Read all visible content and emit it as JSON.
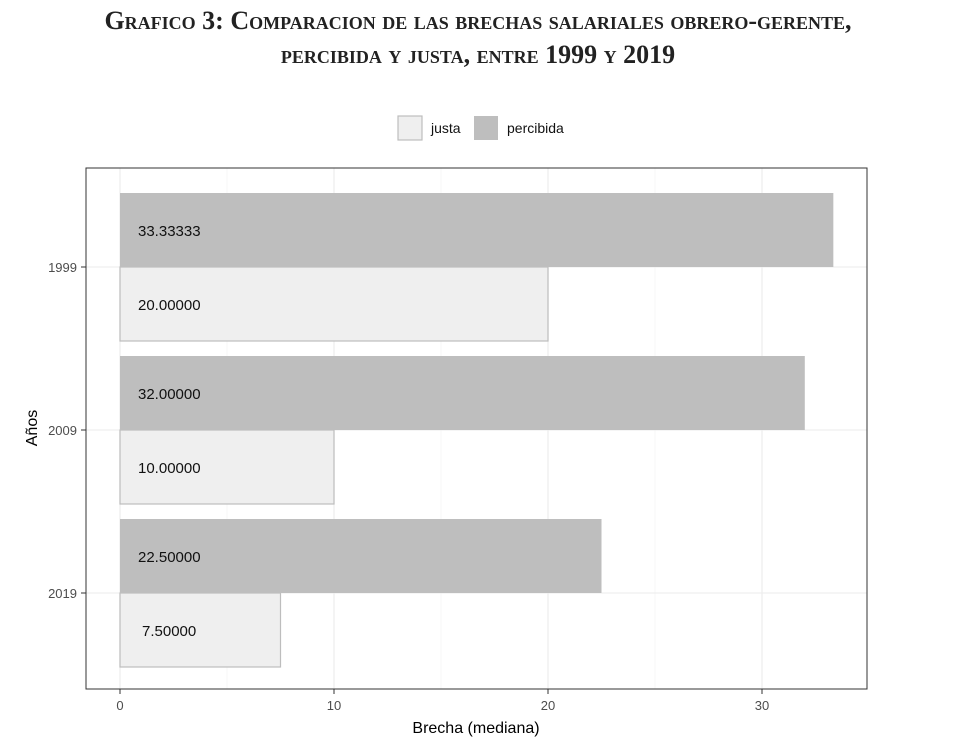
{
  "title_lines": [
    "Grafico 3: Comparacion de las brechas salariales obrero-gerente,",
    "percibida y justa, entre 1999 y 2019"
  ],
  "chart_data": {
    "type": "bar",
    "orientation": "horizontal",
    "categories": [
      "1999",
      "2009",
      "2019"
    ],
    "series": [
      {
        "name": "percibida",
        "values": [
          33.33333,
          32.0,
          22.5
        ],
        "labels": [
          "33.33333",
          "32.00000",
          "22.50000"
        ],
        "color": "#bebebe"
      },
      {
        "name": "justa",
        "values": [
          20.0,
          10.0,
          7.5
        ],
        "labels": [
          "20.00000",
          "10.00000",
          "7.50000"
        ],
        "color": "#efefef"
      }
    ],
    "xlabel": "Brecha (mediana)",
    "ylabel": "Años",
    "xlim": [
      0,
      35
    ],
    "xticks": [
      0,
      10,
      20,
      30
    ],
    "grid": true,
    "legend": {
      "position": "top",
      "order": [
        "justa",
        "percibida"
      ]
    }
  }
}
